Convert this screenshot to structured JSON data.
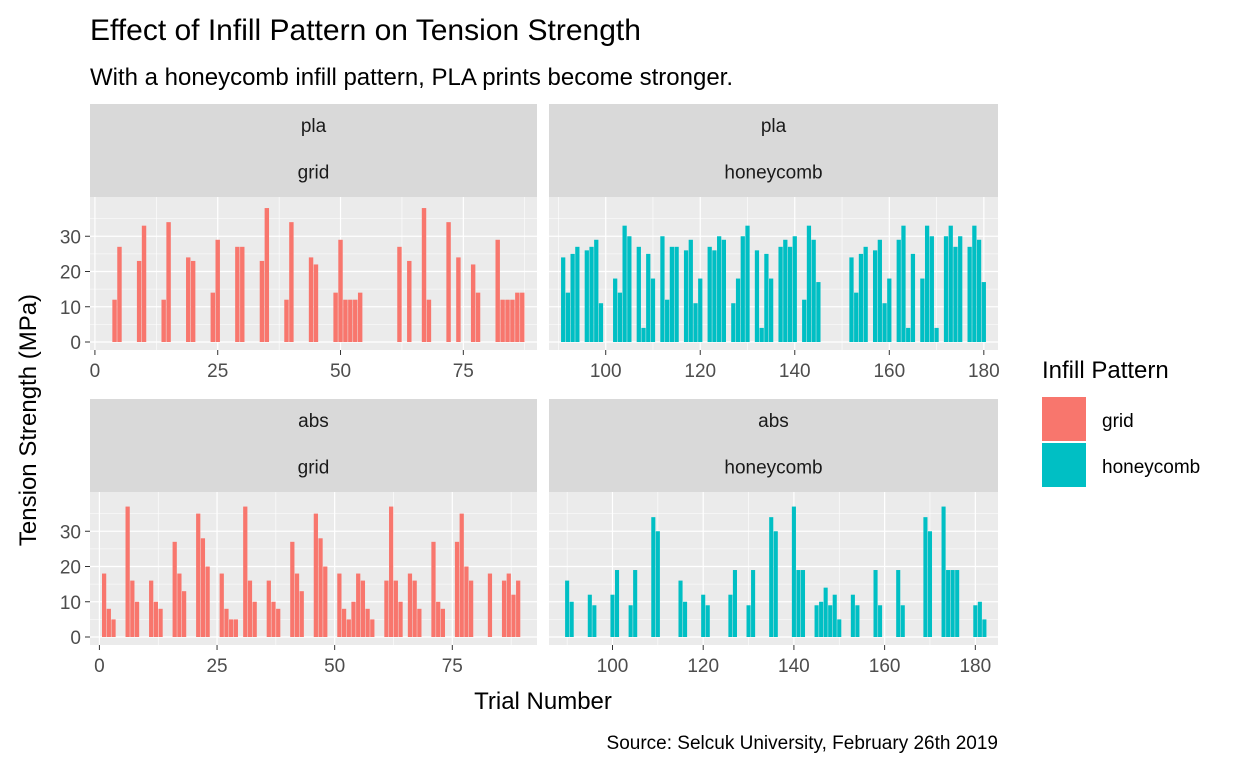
{
  "chart_data": {
    "type": "bar",
    "title": "Effect of Infill Pattern on Tension Strength",
    "subtitle": "With a honeycomb infill pattern, PLA prints become stronger.",
    "xlabel": "Trial Number",
    "ylabel": "Tension Strength (MPa)",
    "caption": "Source: Selcuk University, February 26th 2019",
    "legend": {
      "title": "Infill Pattern",
      "placement": "right",
      "entries": [
        {
          "label": "grid",
          "color": "#F8766D"
        },
        {
          "label": "honeycomb",
          "color": "#00BFC4"
        }
      ]
    },
    "ylim": [
      0,
      40
    ],
    "y_ticks": [
      0,
      10,
      20,
      30
    ],
    "grid": true,
    "panels": [
      {
        "strip": [
          "pla",
          "grid"
        ],
        "fill": "grid",
        "xlim": [
          -1,
          90
        ],
        "x_ticks": [
          0,
          25,
          50,
          75
        ],
        "x": [
          4,
          5,
          9,
          10,
          14,
          15,
          19,
          20,
          24,
          25,
          29,
          30,
          34,
          35,
          39,
          40,
          44,
          45,
          49,
          50,
          51,
          52,
          53,
          54,
          62,
          64,
          67,
          68,
          72,
          74,
          77,
          78,
          82,
          83,
          84,
          85,
          86,
          87
        ],
        "values": [
          12,
          27,
          23,
          33,
          12,
          34,
          24,
          23,
          14,
          29,
          27,
          27,
          23,
          38,
          12,
          34,
          24,
          22,
          14,
          29,
          12,
          12,
          12,
          14,
          27,
          23,
          38,
          12,
          34,
          24,
          22,
          14,
          29,
          12,
          12,
          12,
          14,
          14
        ]
      },
      {
        "strip": [
          "pla",
          "honeycomb"
        ],
        "fill": "honeycomb",
        "xlim": [
          88,
          183
        ],
        "x_ticks": [
          100,
          120,
          140,
          160,
          180
        ],
        "x": [
          91,
          92,
          93,
          94,
          96,
          97,
          98,
          99,
          102,
          103,
          104,
          105,
          107,
          108,
          109,
          110,
          112,
          113,
          114,
          115,
          117,
          118,
          119,
          120,
          122,
          123,
          124,
          125,
          127,
          128,
          129,
          130,
          132,
          133,
          134,
          135,
          137,
          138,
          139,
          140,
          142,
          143,
          144,
          145,
          152,
          153,
          154,
          155,
          157,
          158,
          159,
          160,
          162,
          163,
          164,
          165,
          167,
          168,
          169,
          170,
          172,
          173,
          174,
          175,
          177,
          178,
          179,
          180
        ],
        "values": [
          24,
          14,
          25,
          27,
          26,
          27,
          29,
          11,
          18,
          14,
          33,
          30,
          27,
          4,
          25,
          18,
          30,
          12,
          27,
          27,
          26,
          29,
          11,
          18,
          27,
          26,
          30,
          29,
          11,
          18,
          30,
          33,
          26,
          4,
          25,
          18,
          27,
          29,
          27,
          30,
          12,
          33,
          29,
          17,
          24,
          14,
          25,
          27,
          26,
          29,
          11,
          18,
          29,
          33,
          4,
          25,
          18,
          33,
          30,
          4,
          30,
          33,
          27,
          30,
          27,
          33,
          29,
          17
        ]
      },
      {
        "strip": [
          "abs",
          "grid"
        ],
        "fill": "grid",
        "xlim": [
          -2,
          93
        ],
        "x_ticks": [
          0,
          25,
          50,
          75
        ],
        "x": [
          1,
          2,
          3,
          6,
          7,
          8,
          11,
          12,
          13,
          16,
          17,
          18,
          21,
          22,
          23,
          26,
          27,
          28,
          29,
          31,
          32,
          33,
          36,
          37,
          38,
          41,
          42,
          43,
          46,
          47,
          48,
          51,
          52,
          53,
          54,
          55,
          56,
          57,
          58,
          61,
          62,
          63,
          64,
          66,
          67,
          68,
          71,
          72,
          73,
          76,
          77,
          78,
          79,
          83,
          86,
          87,
          88,
          89
        ],
        "values": [
          18,
          8,
          5,
          37,
          16,
          10,
          16,
          10,
          8,
          27,
          18,
          13,
          35,
          28,
          20,
          18,
          8,
          5,
          5,
          37,
          16,
          10,
          16,
          10,
          8,
          27,
          18,
          13,
          35,
          28,
          20,
          18,
          8,
          5,
          10,
          18,
          16,
          8,
          5,
          16,
          37,
          16,
          10,
          18,
          16,
          8,
          27,
          10,
          8,
          27,
          35,
          20,
          16,
          18,
          16,
          18,
          12,
          16
        ]
      },
      {
        "strip": [
          "abs",
          "honeycomb"
        ],
        "fill": "honeycomb",
        "xlim": [
          86,
          185
        ],
        "x_ticks": [
          100,
          120,
          140,
          160,
          180
        ],
        "x": [
          90,
          91,
          95,
          96,
          100,
          101,
          104,
          105,
          109,
          110,
          115,
          116,
          120,
          121,
          126,
          127,
          130,
          131,
          135,
          136,
          140,
          141,
          142,
          145,
          146,
          147,
          148,
          149,
          150,
          153,
          154,
          158,
          159,
          163,
          164,
          169,
          170,
          173,
          174,
          175,
          176,
          180,
          181,
          182
        ],
        "values": [
          16,
          10,
          12,
          9,
          12,
          19,
          9,
          19,
          34,
          30,
          16,
          10,
          12,
          9,
          12,
          19,
          9,
          19,
          34,
          30,
          37,
          19,
          19,
          9,
          10,
          14,
          9,
          12,
          5,
          12,
          9,
          19,
          9,
          19,
          9,
          34,
          30,
          37,
          19,
          19,
          19,
          9,
          10,
          5
        ]
      }
    ]
  }
}
